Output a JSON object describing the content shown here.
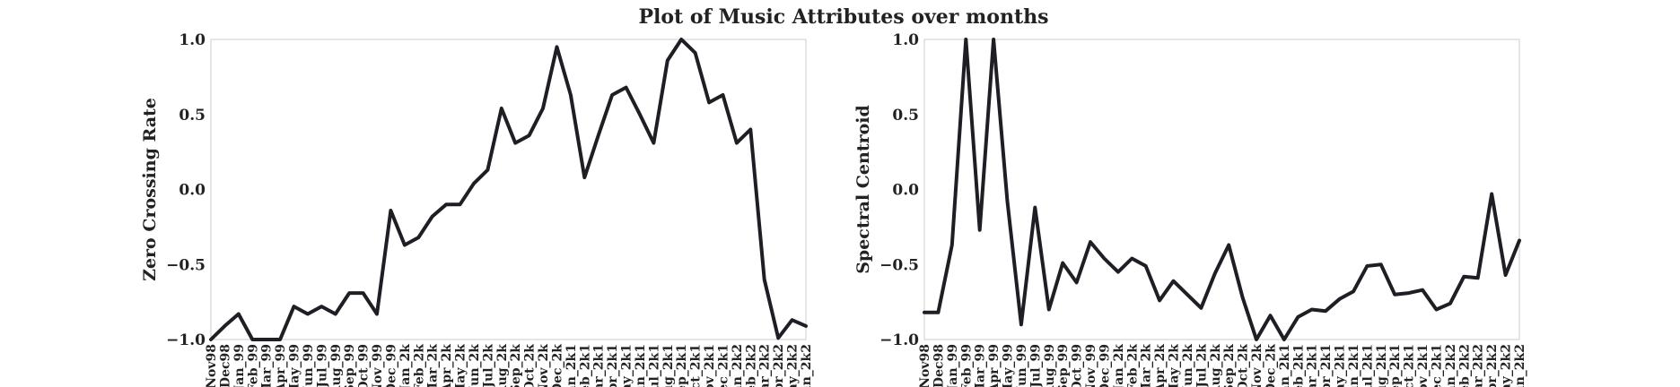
{
  "figure": {
    "title": "Plot of Music Attributes over months"
  },
  "chart_data": [
    {
      "type": "line",
      "title": "",
      "xlabel": "",
      "ylabel": "Zero Crossing Rate",
      "ylim": [
        -1.0,
        1.0
      ],
      "yticks": [
        "1.0",
        "0.5",
        "0.0",
        "−0.5",
        "−1.0"
      ],
      "grid": false,
      "line_color": "#1e1e24",
      "categories": [
        "Nov98",
        "Dec98",
        "Jan_99",
        "Feb_99",
        "Mar_99",
        "Apr_99",
        "May_99",
        "Jun_99",
        "Jul_99",
        "Aug_99",
        "Sep_99",
        "Oct_99",
        "Nov_99",
        "Dec_99",
        "Jan_2k",
        "Feb_2k",
        "Mar_2k",
        "Apr_2k",
        "May_2k",
        "Jun_2k",
        "Jul_2k",
        "Aug_2k",
        "Sep_2k",
        "Oct_2k",
        "Nov_2k",
        "Dec_2k",
        "Jan_2k1",
        "Feb_2k1",
        "Mar_2k1",
        "Apr_2k1",
        "May_2k1",
        "Jun_2k1",
        "Jul_2k1",
        "Aug_2k1",
        "Sep_2k1",
        "Oct_2k1",
        "Nov_2k1",
        "Dec_2k1",
        "Jan_2k2",
        "Feb_2k2",
        "Mar_2k2",
        "Apr_2k2",
        "May_2k2",
        "Jun_2k2"
      ],
      "values": [
        -1.0,
        -0.91,
        -0.83,
        -1.0,
        -1.0,
        -1.0,
        -0.78,
        -0.83,
        -0.78,
        -0.83,
        -0.69,
        -0.69,
        -0.83,
        -0.14,
        -0.37,
        -0.32,
        -0.18,
        -0.1,
        -0.1,
        0.04,
        0.13,
        0.54,
        0.31,
        0.36,
        0.54,
        0.95,
        0.63,
        0.08,
        0.36,
        0.63,
        0.68,
        0.5,
        0.31,
        0.86,
        1.0,
        0.91,
        0.58,
        0.63,
        0.31,
        0.4,
        -0.6,
        -0.99,
        -0.87,
        -0.91
      ]
    },
    {
      "type": "line",
      "title": "",
      "xlabel": "",
      "ylabel": "Spectral Centroid",
      "ylim": [
        -1.0,
        1.0
      ],
      "yticks": [
        "1.0",
        "0.5",
        "0.0",
        "−0.5",
        "−1.0"
      ],
      "grid": false,
      "line_color": "#1e1e24",
      "categories": [
        "Nov98",
        "Dec98",
        "Jan_99",
        "Feb_99",
        "Mar_99",
        "Apr_99",
        "May_99",
        "Jun_99",
        "Jul_99",
        "Aug_99",
        "Sep_99",
        "Oct_99",
        "Nov_99",
        "Dec_99",
        "Jan_2k",
        "Feb_2k",
        "Mar_2k",
        "Apr_2k",
        "May_2k",
        "Jun_2k",
        "Jul_2k",
        "Aug_2k",
        "Sep_2k",
        "Oct_2k",
        "Nov_2k",
        "Dec_2k",
        "Jan_2k1",
        "Feb_2k1",
        "Mar_2k1",
        "Apr_2k1",
        "May_2k1",
        "Jun_2k1",
        "Jul_2k1",
        "Aug_2k1",
        "Sep_2k1",
        "Oct_2k1",
        "Nov_2k1",
        "Dec_2k1",
        "Jan_2k2",
        "Feb_2k2",
        "Mar_2k2",
        "Apr_2k2",
        "May_2k2",
        "Jun_2k2"
      ],
      "values": [
        -0.82,
        -0.82,
        -0.37,
        1.0,
        -0.27,
        1.0,
        -0.08,
        -0.9,
        -0.12,
        -0.8,
        -0.49,
        -0.62,
        -0.35,
        -0.46,
        -0.55,
        -0.46,
        -0.51,
        -0.74,
        -0.61,
        -0.7,
        -0.79,
        -0.56,
        -0.37,
        -0.72,
        -1.0,
        -0.84,
        -1.0,
        -0.85,
        -0.8,
        -0.81,
        -0.73,
        -0.68,
        -0.51,
        -0.5,
        -0.7,
        -0.69,
        -0.67,
        -0.8,
        -0.76,
        -0.58,
        -0.59,
        -0.03,
        -0.57,
        -0.34
      ]
    }
  ]
}
